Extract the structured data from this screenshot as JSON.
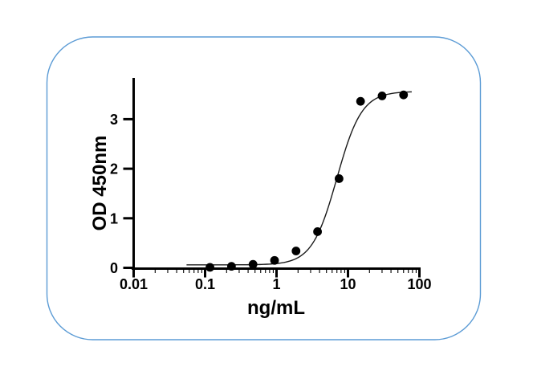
{
  "page": {
    "background_color": "#ffffff"
  },
  "frame": {
    "border_color": "#5B9BD5",
    "fill": "none"
  },
  "chart_data": {
    "type": "scatter",
    "title": "",
    "xlabel": "ng/mL",
    "ylabel": "OD 450nm",
    "x_scale": "log10",
    "xlim": [
      0.01,
      100
    ],
    "ylim": [
      0,
      3.8
    ],
    "grid": false,
    "legend": null,
    "axis_color": "#000000",
    "curve_color": "#1a1a1a",
    "marker_color": "#000000",
    "x_ticks": [
      {
        "value": 0.01,
        "label": "0.01"
      },
      {
        "value": 0.1,
        "label": "0.1"
      },
      {
        "value": 1,
        "label": "1"
      },
      {
        "value": 10,
        "label": "10"
      },
      {
        "value": 100,
        "label": "100"
      }
    ],
    "y_ticks": [
      {
        "value": 0,
        "label": "0"
      },
      {
        "value": 1,
        "label": "1"
      },
      {
        "value": 2,
        "label": "2"
      },
      {
        "value": 3,
        "label": "3"
      }
    ],
    "x_minor_tick_decades": [
      0.01,
      0.1,
      1,
      10
    ],
    "points": [
      {
        "x": 0.117,
        "y": 0.01
      },
      {
        "x": 0.234,
        "y": 0.03
      },
      {
        "x": 0.469,
        "y": 0.07
      },
      {
        "x": 0.938,
        "y": 0.15
      },
      {
        "x": 1.875,
        "y": 0.34
      },
      {
        "x": 3.75,
        "y": 0.73
      },
      {
        "x": 7.5,
        "y": 1.8
      },
      {
        "x": 15,
        "y": 3.36
      },
      {
        "x": 30,
        "y": 3.47
      },
      {
        "x": 60,
        "y": 3.49
      }
    ],
    "fit_curve": {
      "model": "4PL",
      "bottom": 0.06,
      "top": 3.56,
      "ec50": 7.0,
      "hill": 2.5,
      "x_start": 0.055,
      "x_end": 78
    }
  }
}
